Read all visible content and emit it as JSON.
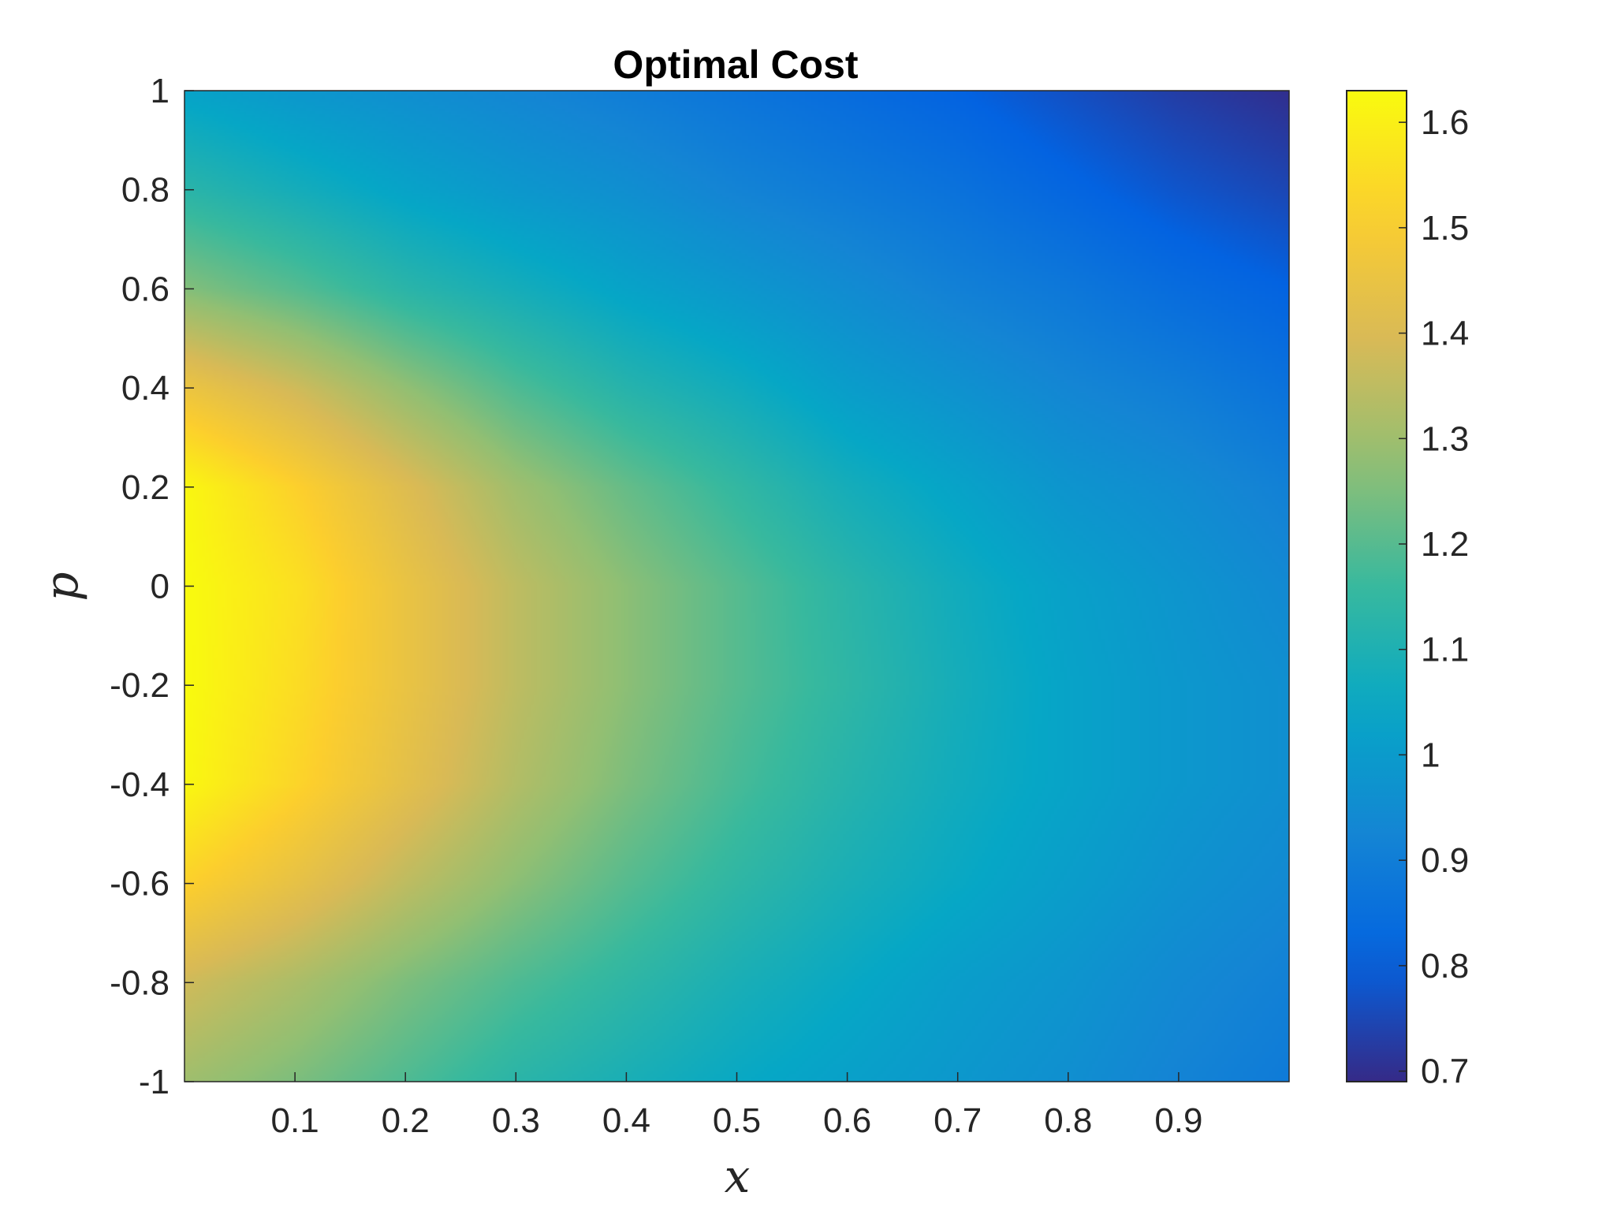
{
  "chart_data": {
    "type": "heatmap",
    "title": "Optimal Cost",
    "xlabel": "x",
    "ylabel": "p",
    "xlim": [
      0,
      1
    ],
    "ylim": [
      -1,
      1
    ],
    "x_ticks": [
      "0.1",
      "0.2",
      "0.3",
      "0.4",
      "0.5",
      "0.6",
      "0.7",
      "0.8",
      "0.9"
    ],
    "x_tick_values": [
      0.1,
      0.2,
      0.3,
      0.4,
      0.5,
      0.6,
      0.7,
      0.8,
      0.9
    ],
    "y_ticks": [
      "1",
      "0.8",
      "0.6",
      "0.4",
      "0.2",
      "0",
      "-0.2",
      "-0.4",
      "-0.6",
      "-0.8",
      "-1"
    ],
    "y_tick_values": [
      1,
      0.8,
      0.6,
      0.4,
      0.2,
      0,
      -0.2,
      -0.4,
      -0.6,
      -0.8,
      -1
    ],
    "colorbar": {
      "range": [
        0.69,
        1.63
      ],
      "ticks": [
        "1.6",
        "1.5",
        "1.4",
        "1.3",
        "1.2",
        "1.1",
        "1",
        "0.9",
        "0.8",
        "0.7"
      ],
      "tick_values": [
        1.6,
        1.5,
        1.4,
        1.3,
        1.2,
        1.1,
        1.0,
        0.9,
        0.8,
        0.7
      ],
      "colormap": "parula"
    },
    "grid": false,
    "sample_grid": {
      "x": [
        0.0,
        0.1,
        0.2,
        0.3,
        0.4,
        0.5,
        0.6,
        0.7,
        0.8,
        0.9,
        1.0
      ],
      "p": [
        1.0,
        0.8,
        0.6,
        0.4,
        0.2,
        0.0,
        -0.2,
        -0.4,
        -0.6,
        -0.8,
        -1.0
      ],
      "values": [
        [
          1.03,
          0.99,
          0.96,
          0.93,
          0.9,
          0.87,
          0.84,
          0.81,
          0.77,
          0.73,
          0.7
        ],
        [
          1.13,
          1.08,
          1.03,
          0.99,
          0.96,
          0.92,
          0.89,
          0.86,
          0.82,
          0.78,
          0.75
        ],
        [
          1.26,
          1.2,
          1.13,
          1.08,
          1.03,
          0.99,
          0.95,
          0.91,
          0.88,
          0.84,
          0.81
        ],
        [
          1.46,
          1.38,
          1.28,
          1.19,
          1.12,
          1.07,
          1.01,
          0.97,
          0.93,
          0.9,
          0.86
        ],
        [
          1.62,
          1.52,
          1.41,
          1.3,
          1.22,
          1.15,
          1.08,
          1.03,
          0.98,
          0.95,
          0.91
        ],
        [
          1.63,
          1.56,
          1.45,
          1.35,
          1.27,
          1.2,
          1.13,
          1.07,
          1.02,
          0.98,
          0.94
        ],
        [
          1.63,
          1.55,
          1.45,
          1.35,
          1.27,
          1.2,
          1.14,
          1.08,
          1.03,
          0.99,
          0.96
        ],
        [
          1.62,
          1.53,
          1.43,
          1.33,
          1.25,
          1.18,
          1.12,
          1.07,
          1.03,
          0.99,
          0.96
        ],
        [
          1.52,
          1.44,
          1.35,
          1.27,
          1.2,
          1.14,
          1.09,
          1.05,
          1.01,
          0.97,
          0.94
        ],
        [
          1.38,
          1.32,
          1.25,
          1.19,
          1.14,
          1.09,
          1.05,
          1.01,
          0.98,
          0.94,
          0.91
        ],
        [
          1.3,
          1.25,
          1.19,
          1.13,
          1.09,
          1.05,
          1.02,
          0.99,
          0.96,
          0.92,
          0.89
        ]
      ]
    }
  }
}
